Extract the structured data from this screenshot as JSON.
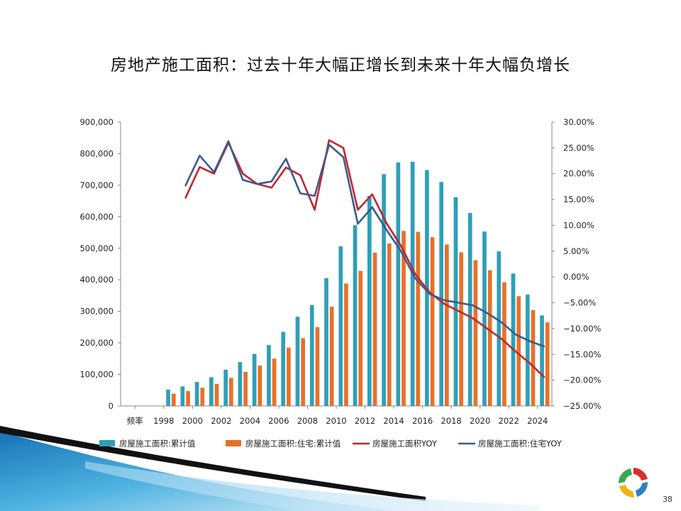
{
  "slide": {
    "title": "房地产施工面积：过去十年大幅正增长到未来十年大幅负增长",
    "page_number": "38"
  },
  "colors": {
    "bar_total": "#2E9FB8",
    "bar_residential": "#E8702A",
    "line_total_yoy": "#C0272D",
    "line_residential_yoy": "#3B5A8C",
    "swoosh_blue": "#1E8CC4"
  },
  "chart_data": {
    "type": "bar+line",
    "title": "",
    "categories": [
      "1996",
      "1997",
      "1998",
      "1999",
      "2000",
      "2001",
      "2002",
      "2003",
      "2004",
      "2005",
      "2006",
      "2007",
      "2008",
      "2009",
      "2010",
      "2011",
      "2012",
      "2013",
      "2014",
      "2015",
      "2016",
      "2017",
      "2018",
      "2019",
      "2020",
      "2021",
      "2022",
      "2023",
      "2024",
      "2025"
    ],
    "x_tick_labels": [
      "频率",
      "1998",
      "2000",
      "2002",
      "2004",
      "2006",
      "2008",
      "2010",
      "2012",
      "2014",
      "2016",
      "2018",
      "2020",
      "2022",
      "2024"
    ],
    "y_left": {
      "min": 0,
      "max": 900000,
      "step": 100000,
      "tick_labels": [
        "0",
        "100,000",
        "200,000",
        "300,000",
        "400,000",
        "500,000",
        "600,000",
        "700,000",
        "800,000",
        "900,000"
      ]
    },
    "y_right": {
      "min": -25,
      "max": 30,
      "step": 5,
      "tick_labels": [
        "-25.00%",
        "-20.00%",
        "-15.00%",
        "-10.00%",
        "-5.00%",
        "0.00%",
        "5.00%",
        "10.00%",
        "15.00%",
        "20.00%",
        "25.00%",
        "30.00%"
      ]
    },
    "series": [
      {
        "name": "房屋施工面积:累计值",
        "type": "bar",
        "axis": "left",
        "values": [
          null,
          null,
          null,
          52000,
          62000,
          76000,
          91000,
          115000,
          139000,
          165000,
          193000,
          235000,
          283000,
          320000,
          405000,
          506000,
          573000,
          666000,
          735000,
          772000,
          774000,
          748000,
          710000,
          662000,
          612000,
          553000,
          490000,
          420000,
          353000,
          287000
        ]
      },
      {
        "name": "房屋施工面积:住宅:累计值",
        "type": "bar",
        "axis": "left",
        "values": [
          null,
          null,
          null,
          39000,
          47000,
          58000,
          70000,
          89000,
          108000,
          128000,
          150000,
          185000,
          215000,
          250000,
          315000,
          388000,
          428000,
          486000,
          515000,
          555000,
          552000,
          535000,
          512000,
          487000,
          462000,
          430000,
          392000,
          348000,
          304000,
          265000
        ]
      },
      {
        "name": "房屋施工面积YOY",
        "type": "line",
        "axis": "right",
        "values": [
          null,
          null,
          null,
          null,
          15.2,
          21.3,
          20.0,
          26.0,
          20.0,
          18.0,
          17.3,
          21.2,
          19.7,
          13.0,
          26.5,
          25.0,
          13.0,
          16.0,
          10.4,
          6.0,
          0.5,
          -3.0,
          -5.2,
          -6.6,
          -8.0,
          -10.0,
          -12.0,
          -14.5,
          -16.8,
          -19.5
        ]
      },
      {
        "name": "房屋施工面积:住宅YOY",
        "type": "line",
        "axis": "right",
        "values": [
          null,
          null,
          null,
          null,
          17.6,
          23.5,
          20.3,
          26.3,
          18.8,
          18.0,
          18.5,
          22.9,
          16.2,
          15.7,
          25.6,
          23.2,
          10.3,
          13.5,
          9.1,
          5.0,
          -0.3,
          -3.3,
          -4.5,
          -5.0,
          -5.5,
          -7.0,
          -8.8,
          -11.2,
          -12.5,
          -13.5
        ]
      }
    ],
    "legend_position": "bottom",
    "grid": false
  }
}
